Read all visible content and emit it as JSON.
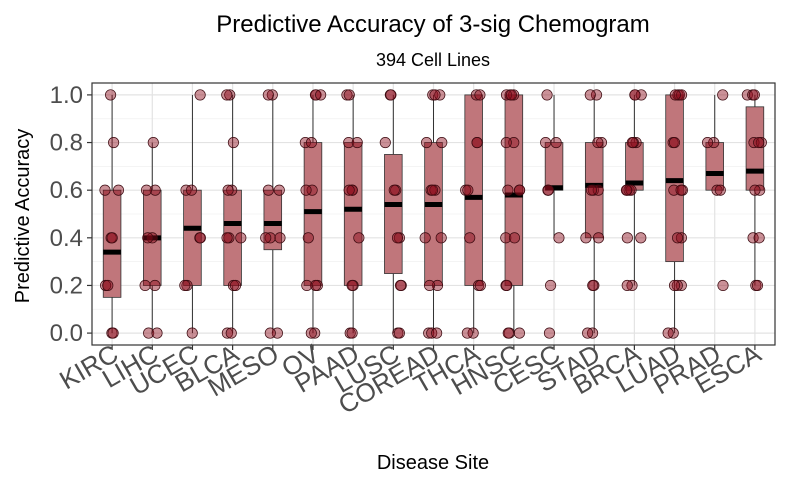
{
  "chart_data": {
    "type": "box",
    "title": "Predictive Accuracy of 3-sig Chemogram",
    "subtitle": "394 Cell Lines",
    "xlabel": "Disease Site",
    "ylabel": "Predictive Accuracy",
    "ylim": [
      -0.05,
      1.05
    ],
    "yticks": [
      "0.0",
      "0.2",
      "0.4",
      "0.6",
      "0.8",
      "1.0"
    ],
    "grid": true,
    "box_color": "#c0767b",
    "point_color": "#8b0a1a",
    "categories": [
      "KIRC",
      "LIHC",
      "UCEC",
      "BLCA",
      "MESO",
      "OV",
      "PAAD",
      "LUSC",
      "COREAD",
      "THCA",
      "HNSC",
      "CESC",
      "STAD",
      "BRCA",
      "LUAD",
      "PRAD",
      "ESCA"
    ],
    "boxes": [
      {
        "category": "KIRC",
        "whisker_low": 0.0,
        "q1": 0.15,
        "median": 0.34,
        "q3": 0.6,
        "whisker_high": 1.0
      },
      {
        "category": "LIHC",
        "whisker_low": 0.0,
        "q1": 0.2,
        "median": 0.4,
        "q3": 0.6,
        "whisker_high": 0.8
      },
      {
        "category": "UCEC",
        "whisker_low": 0.0,
        "q1": 0.2,
        "median": 0.44,
        "q3": 0.6,
        "whisker_high": 1.0
      },
      {
        "category": "BLCA",
        "whisker_low": 0.0,
        "q1": 0.2,
        "median": 0.46,
        "q3": 0.6,
        "whisker_high": 1.0
      },
      {
        "category": "MESO",
        "whisker_low": 0.0,
        "q1": 0.35,
        "median": 0.46,
        "q3": 0.6,
        "whisker_high": 1.0
      },
      {
        "category": "OV",
        "whisker_low": 0.0,
        "q1": 0.2,
        "median": 0.51,
        "q3": 0.8,
        "whisker_high": 1.0
      },
      {
        "category": "PAAD",
        "whisker_low": 0.0,
        "q1": 0.2,
        "median": 0.52,
        "q3": 0.8,
        "whisker_high": 1.0
      },
      {
        "category": "LUSC",
        "whisker_low": 0.0,
        "q1": 0.25,
        "median": 0.54,
        "q3": 0.75,
        "whisker_high": 1.0
      },
      {
        "category": "COREAD",
        "whisker_low": 0.0,
        "q1": 0.2,
        "median": 0.54,
        "q3": 0.8,
        "whisker_high": 1.0
      },
      {
        "category": "THCA",
        "whisker_low": 0.0,
        "q1": 0.2,
        "median": 0.57,
        "q3": 1.0,
        "whisker_high": 1.0
      },
      {
        "category": "HNSC",
        "whisker_low": 0.0,
        "q1": 0.2,
        "median": 0.58,
        "q3": 1.0,
        "whisker_high": 1.0
      },
      {
        "category": "CESC",
        "whisker_low": 0.4,
        "q1": 0.6,
        "median": 0.61,
        "q3": 0.8,
        "whisker_high": 1.0
      },
      {
        "category": "STAD",
        "whisker_low": 0.0,
        "q1": 0.4,
        "median": 0.62,
        "q3": 0.8,
        "whisker_high": 1.0
      },
      {
        "category": "BRCA",
        "whisker_low": 0.2,
        "q1": 0.6,
        "median": 0.63,
        "q3": 0.8,
        "whisker_high": 1.0
      },
      {
        "category": "LUAD",
        "whisker_low": 0.0,
        "q1": 0.3,
        "median": 0.64,
        "q3": 1.0,
        "whisker_high": 1.0
      },
      {
        "category": "PRAD",
        "whisker_low": 0.6,
        "q1": 0.6,
        "median": 0.67,
        "q3": 0.8,
        "whisker_high": 1.0
      },
      {
        "category": "ESCA",
        "whisker_low": 0.2,
        "q1": 0.6,
        "median": 0.68,
        "q3": 0.95,
        "whisker_high": 1.0
      }
    ],
    "points": [
      {
        "category": "KIRC",
        "values": [
          0.0,
          0.0,
          0.2,
          0.2,
          0.4,
          0.4,
          0.6,
          0.6,
          0.8,
          1.0
        ]
      },
      {
        "category": "LIHC",
        "values": [
          0.0,
          0.0,
          0.2,
          0.2,
          0.4,
          0.4,
          0.6,
          0.6,
          0.8
        ]
      },
      {
        "category": "UCEC",
        "values": [
          0.0,
          0.2,
          0.2,
          0.4,
          0.4,
          0.6,
          0.6,
          1.0
        ]
      },
      {
        "category": "BLCA",
        "values": [
          0.0,
          0.0,
          0.2,
          0.2,
          0.4,
          0.4,
          0.4,
          0.6,
          0.6,
          0.8,
          1.0,
          1.0
        ]
      },
      {
        "category": "MESO",
        "values": [
          0.0,
          0.0,
          0.4,
          0.4,
          0.4,
          0.6,
          0.6,
          1.0,
          1.0
        ]
      },
      {
        "category": "OV",
        "values": [
          0.0,
          0.0,
          0.2,
          0.2,
          0.2,
          0.4,
          0.6,
          0.6,
          0.8,
          0.8,
          1.0,
          1.0,
          1.0
        ]
      },
      {
        "category": "PAAD",
        "values": [
          0.0,
          0.0,
          0.2,
          0.2,
          0.4,
          0.6,
          0.6,
          0.6,
          0.8,
          0.8,
          1.0,
          1.0
        ]
      },
      {
        "category": "LUSC",
        "values": [
          0.0,
          0.0,
          0.2,
          0.2,
          0.4,
          0.4,
          0.6,
          0.6,
          0.8,
          1.0,
          1.0
        ]
      },
      {
        "category": "COREAD",
        "values": [
          0.0,
          0.0,
          0.0,
          0.2,
          0.2,
          0.4,
          0.4,
          0.6,
          0.6,
          0.6,
          0.8,
          0.8,
          1.0,
          1.0,
          1.0
        ]
      },
      {
        "category": "THCA",
        "values": [
          0.0,
          0.0,
          0.2,
          0.2,
          0.4,
          0.6,
          0.6,
          0.8,
          0.8,
          1.0,
          1.0
        ]
      },
      {
        "category": "HNSC",
        "values": [
          0.0,
          0.0,
          0.0,
          0.2,
          0.2,
          0.4,
          0.4,
          0.6,
          0.6,
          0.6,
          0.8,
          0.8,
          1.0,
          1.0,
          1.0,
          1.0
        ]
      },
      {
        "category": "CESC",
        "values": [
          0.0,
          0.2,
          0.4,
          0.6,
          0.6,
          0.8,
          0.8,
          1.0
        ]
      },
      {
        "category": "STAD",
        "values": [
          0.0,
          0.0,
          0.2,
          0.2,
          0.4,
          0.4,
          0.6,
          0.6,
          0.6,
          0.8,
          0.8,
          1.0,
          1.0
        ]
      },
      {
        "category": "BRCA",
        "values": [
          0.2,
          0.2,
          0.4,
          0.4,
          0.6,
          0.6,
          0.6,
          0.6,
          0.8,
          0.8,
          0.8,
          1.0,
          1.0,
          1.0
        ]
      },
      {
        "category": "LUAD",
        "values": [
          0.0,
          0.0,
          0.2,
          0.2,
          0.2,
          0.4,
          0.4,
          0.6,
          0.6,
          0.6,
          0.8,
          0.8,
          1.0,
          1.0,
          1.0,
          1.0
        ]
      },
      {
        "category": "PRAD",
        "values": [
          0.2,
          0.6,
          0.6,
          0.8,
          0.8,
          1.0
        ]
      },
      {
        "category": "ESCA",
        "values": [
          0.2,
          0.2,
          0.4,
          0.4,
          0.6,
          0.6,
          0.8,
          0.8,
          0.8,
          1.0,
          1.0,
          1.0
        ]
      }
    ]
  }
}
